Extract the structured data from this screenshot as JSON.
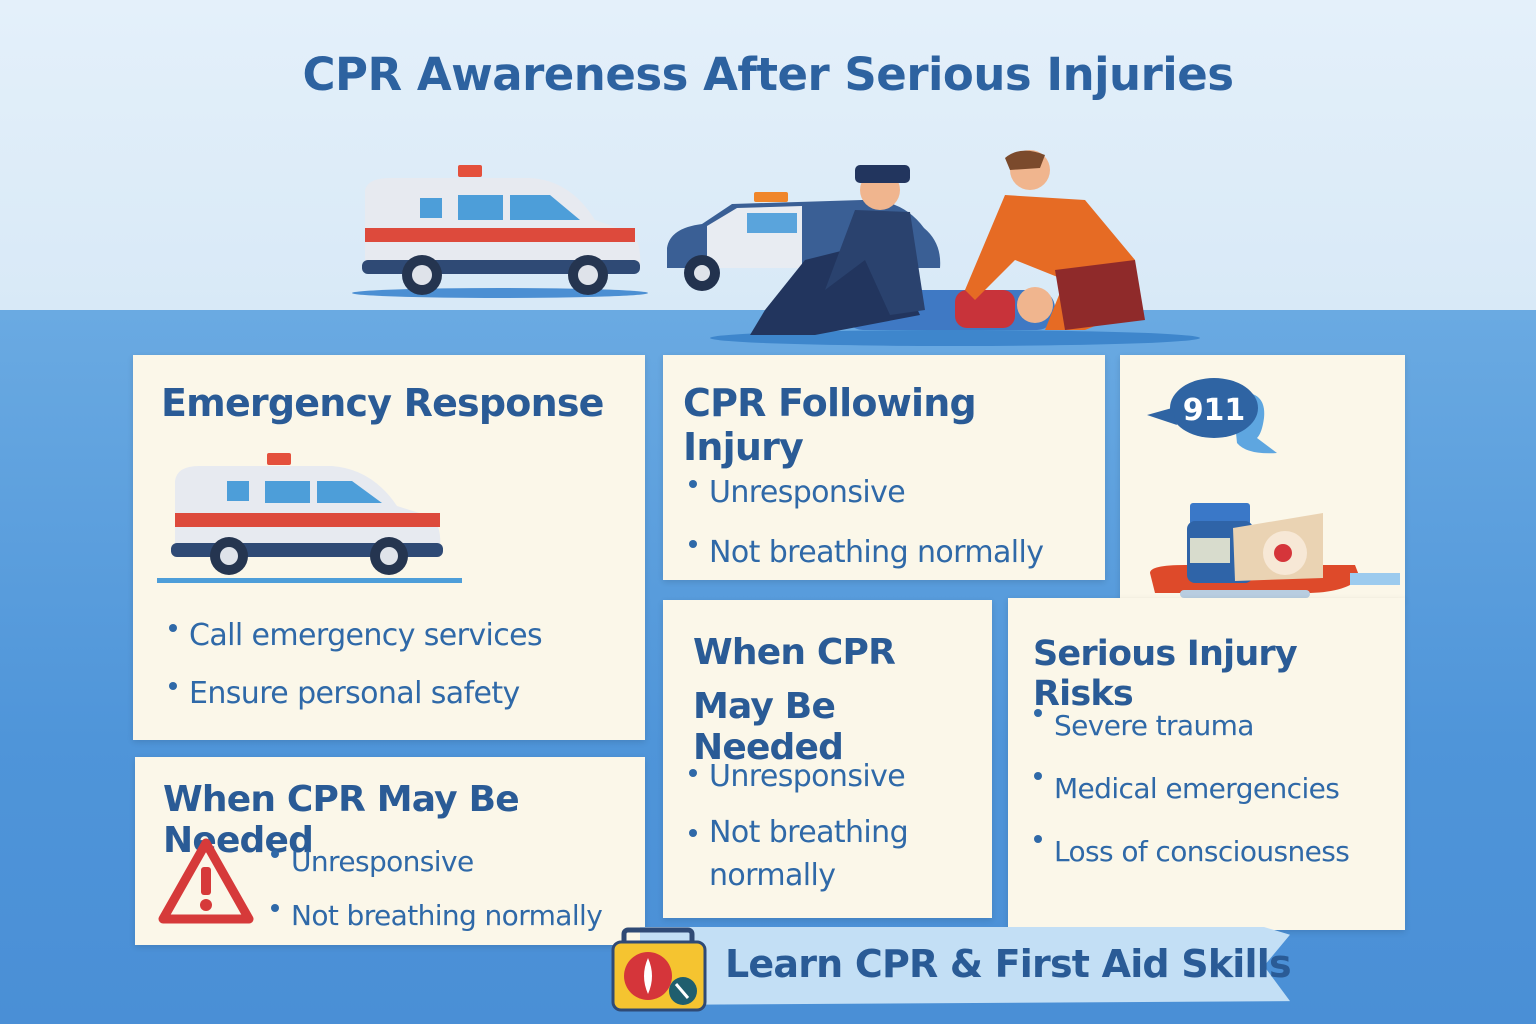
{
  "title": "CPR Awareness After Serious Injuries",
  "cards": {
    "emergency_response": {
      "heading": "Emergency Response",
      "bullets": [
        "Call emergency services",
        "Ensure personal safety"
      ]
    },
    "cpr_following_injury": {
      "heading": "CPR Following Injury",
      "bullets": [
        "Unresponsive",
        "Not breathing normally"
      ]
    },
    "when_cpr_left": {
      "heading": "When CPR May Be Needed",
      "bullets": [
        "Unresponsive",
        "Not breathing normally"
      ]
    },
    "when_cpr_middle": {
      "heading_line1": "When CPR",
      "heading_line2": "May Be Needed",
      "bullets": [
        "Unresponsive",
        "Not breathing",
        "normally"
      ]
    },
    "serious_injury_risks": {
      "heading": "Serious Injury Risks",
      "bullets": [
        "Severe trauma",
        "Medical emergencies",
        "Loss of consciousness"
      ]
    },
    "emergency_icons": {
      "call_number": "911"
    }
  },
  "banner": {
    "label": "Learn CPR & First Aid Skills"
  },
  "colors": {
    "heading": "#2a5b96",
    "text": "#2f69a8",
    "card": "#fbf7e9",
    "background": "#4f95d9",
    "warning": "#d63a3a"
  }
}
